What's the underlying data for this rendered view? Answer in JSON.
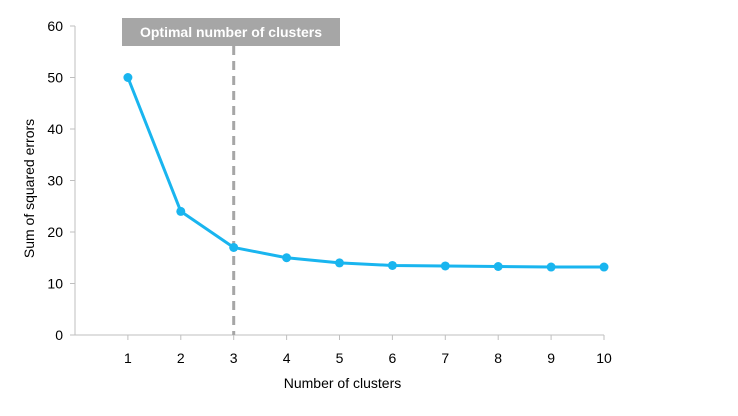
{
  "chart_data": {
    "type": "line",
    "title": "",
    "xlabel": "Number of clusters",
    "ylabel": "Sum of squared errors",
    "xlim": [
      0,
      10
    ],
    "ylim": [
      0,
      60
    ],
    "x_ticks": [
      1,
      2,
      3,
      4,
      5,
      6,
      7,
      8,
      9,
      10
    ],
    "y_ticks": [
      0,
      10,
      20,
      30,
      40,
      50,
      60
    ],
    "grid": false,
    "legend": "none",
    "series": [
      {
        "x": [
          1,
          2,
          3,
          4,
          5,
          6,
          7,
          8,
          9,
          10
        ],
        "values": [
          50,
          24,
          17,
          15,
          14,
          13.5,
          13.4,
          13.3,
          13.2,
          13.2
        ],
        "color": "#19b5ef"
      }
    ],
    "annotation": {
      "text": "Optimal number of clusters",
      "x": 3,
      "style": "dashed vertical line",
      "line_color": "#a6a6a6",
      "label_background": "#a6a6a6",
      "label_text_color": "#ffffff"
    },
    "axis_color": "#bfbfbf",
    "tick_text_color": "#000000"
  }
}
